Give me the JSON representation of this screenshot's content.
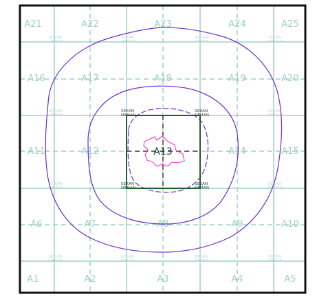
{
  "map": {
    "center_label": "A13",
    "grid_labels": [
      [
        "A21",
        "A22",
        "A23",
        "A24",
        "A25"
      ],
      [
        "A16",
        "A17",
        "A18",
        "A19",
        "A20"
      ],
      [
        "A11",
        "A12",
        "A13",
        "A14",
        "A15"
      ],
      [
        "A6",
        "A7",
        "A8",
        "A9",
        "A10"
      ],
      [
        "A1",
        "A2",
        "A3",
        "A4",
        "A5"
      ]
    ],
    "stamp_text": "SEKAN\nNEMAN",
    "colors": {
      "grid": "#9fcfca",
      "frame": "#111111",
      "center_block": "#1f5d2f",
      "contour": "#6b2ccf",
      "site_boundary": "#ff33cc"
    }
  }
}
